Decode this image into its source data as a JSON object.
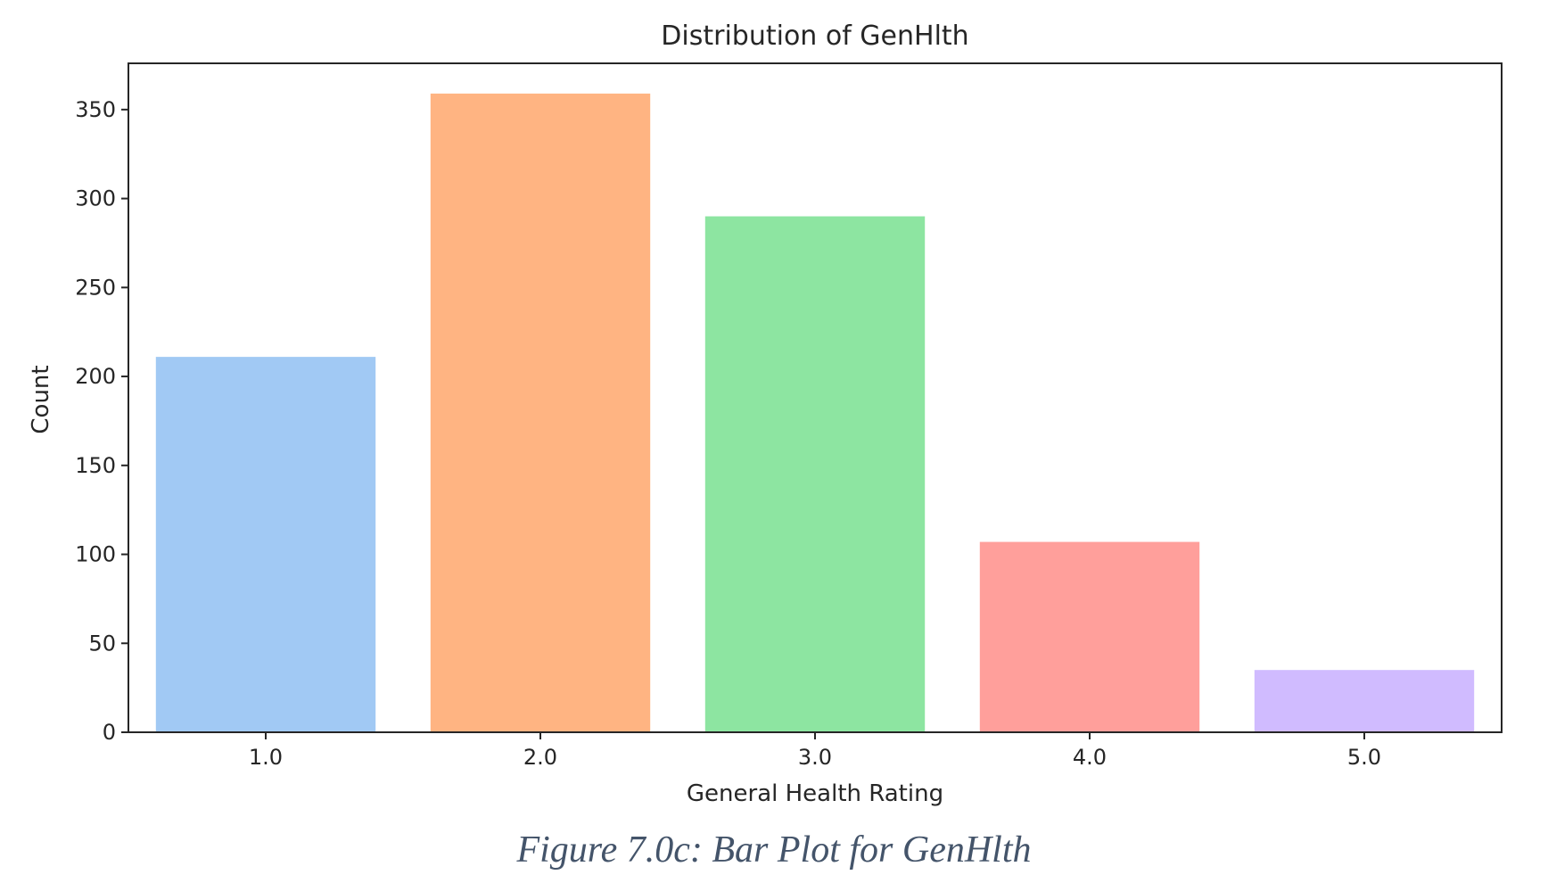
{
  "chart_data": {
    "type": "bar",
    "title": "Distribution of GenHlth",
    "xlabel": "General Health Rating",
    "ylabel": "Count",
    "categories": [
      "1.0",
      "2.0",
      "3.0",
      "4.0",
      "5.0"
    ],
    "values": [
      211,
      359,
      290,
      107,
      35
    ],
    "colors": [
      "#a1c9f4",
      "#ffb482",
      "#8de5a1",
      "#ff9f9b",
      "#d0bbff"
    ],
    "ylim": [
      0,
      376
    ],
    "yticks": [
      0,
      50,
      100,
      150,
      200,
      250,
      300,
      350
    ],
    "grid": false
  },
  "caption": "Figure 7.0c: Bar Plot for GenHlth"
}
